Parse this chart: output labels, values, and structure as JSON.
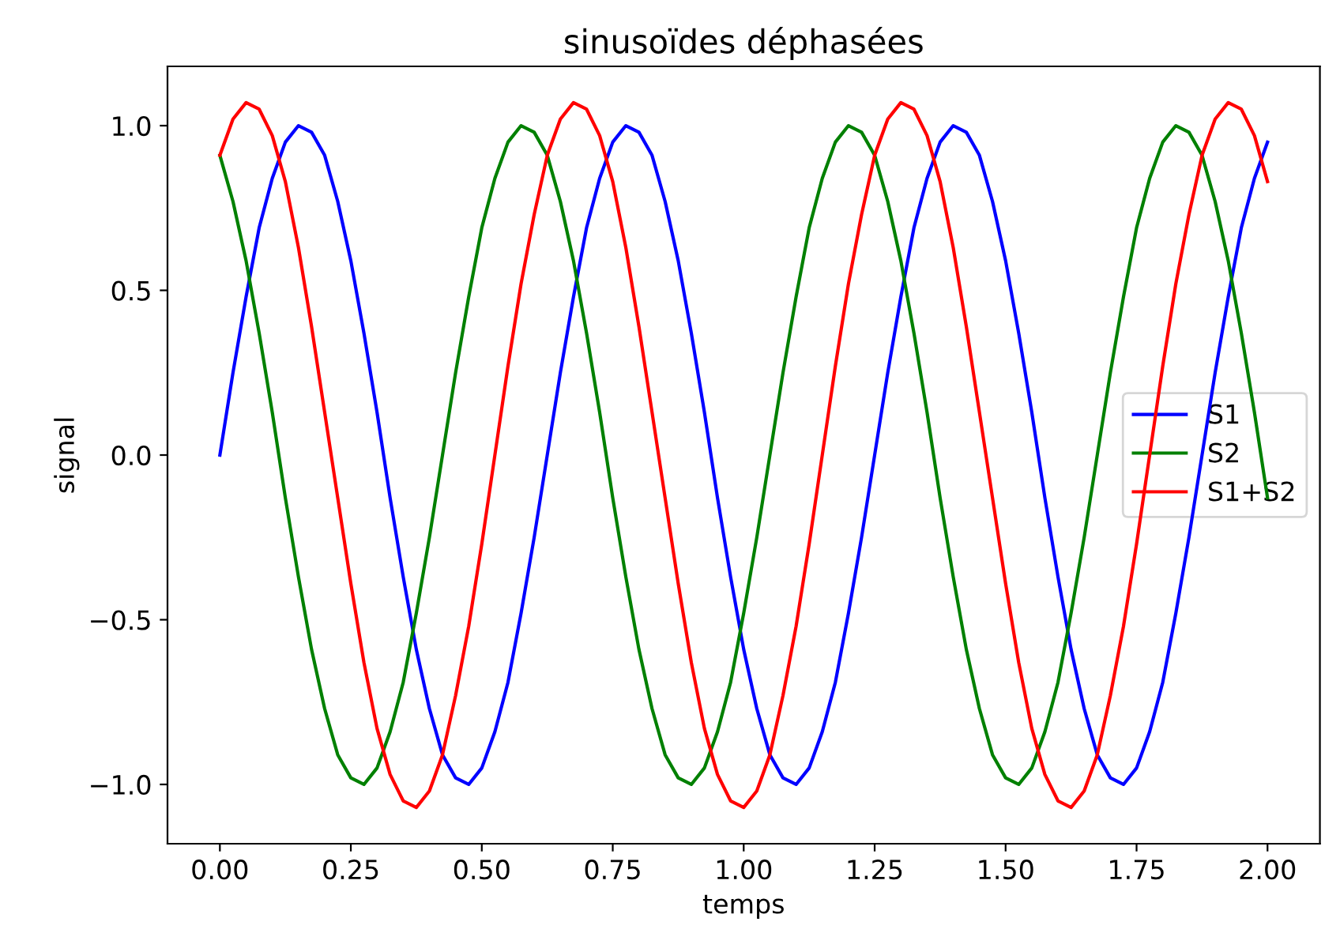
{
  "chart_data": {
    "type": "line",
    "title": "sinusoïdes déphasées",
    "xlabel": "temps",
    "ylabel": "signal",
    "x": [
      0,
      0.025,
      0.05,
      0.075,
      0.1,
      0.125,
      0.15,
      0.175,
      0.2,
      0.225,
      0.25,
      0.275,
      0.3,
      0.325,
      0.35,
      0.375,
      0.4,
      0.425,
      0.45,
      0.475,
      0.5,
      0.525,
      0.55,
      0.575,
      0.6,
      0.625,
      0.65,
      0.675,
      0.7,
      0.725,
      0.75,
      0.775,
      0.8,
      0.825,
      0.85,
      0.875,
      0.9,
      0.925,
      0.95,
      0.975,
      1.0,
      1.025,
      1.05,
      1.075,
      1.1,
      1.125,
      1.15,
      1.175,
      1.2,
      1.225,
      1.25,
      1.275,
      1.3,
      1.325,
      1.35,
      1.375,
      1.4,
      1.425,
      1.45,
      1.475,
      1.5,
      1.525,
      1.55,
      1.575,
      1.6,
      1.625,
      1.65,
      1.675,
      1.7,
      1.725,
      1.75,
      1.775,
      1.8,
      1.825,
      1.85,
      1.875,
      1.9,
      1.925,
      1.95,
      1.975,
      2.0
    ],
    "series": [
      {
        "name": "S1",
        "color": "#0000ff",
        "values": [
          0,
          0.25,
          0.48,
          0.69,
          0.84,
          0.95,
          1.0,
          0.98,
          0.91,
          0.77,
          0.59,
          0.37,
          0.13,
          -0.13,
          -0.37,
          -0.59,
          -0.77,
          -0.91,
          -0.98,
          -1.0,
          -0.95,
          -0.84,
          -0.69,
          -0.48,
          -0.25,
          0,
          0.25,
          0.48,
          0.69,
          0.84,
          0.95,
          1.0,
          0.98,
          0.91,
          0.77,
          0.59,
          0.37,
          0.13,
          -0.13,
          -0.37,
          -0.59,
          -0.77,
          -0.91,
          -0.98,
          -1.0,
          -0.95,
          -0.84,
          -0.69,
          -0.48,
          -0.25,
          0,
          0.25,
          0.48,
          0.69,
          0.84,
          0.95,
          1.0,
          0.98,
          0.91,
          0.77,
          0.59,
          0.37,
          0.13,
          -0.13,
          -0.37,
          -0.59,
          -0.77,
          -0.91,
          -0.98,
          -1.0,
          -0.95,
          -0.84,
          -0.69,
          -0.48,
          -0.25,
          0,
          0.25,
          0.48,
          0.69,
          0.84,
          0.95
        ]
      },
      {
        "name": "S2",
        "color": "#008000",
        "values": [
          0.91,
          0.77,
          0.59,
          0.37,
          0.13,
          -0.13,
          -0.37,
          -0.59,
          -0.77,
          -0.91,
          -0.98,
          -1.0,
          -0.95,
          -0.84,
          -0.69,
          -0.48,
          -0.25,
          0,
          0.25,
          0.48,
          0.69,
          0.84,
          0.95,
          1.0,
          0.98,
          0.91,
          0.77,
          0.59,
          0.37,
          0.13,
          -0.13,
          -0.37,
          -0.59,
          -0.77,
          -0.91,
          -0.98,
          -1.0,
          -0.95,
          -0.84,
          -0.69,
          -0.48,
          -0.25,
          0,
          0.25,
          0.48,
          0.69,
          0.84,
          0.95,
          1.0,
          0.98,
          0.91,
          0.77,
          0.59,
          0.37,
          0.13,
          -0.13,
          -0.37,
          -0.59,
          -0.77,
          -0.91,
          -0.98,
          -1.0,
          -0.95,
          -0.84,
          -0.69,
          -0.48,
          -0.25,
          0,
          0.25,
          0.48,
          0.69,
          0.84,
          0.95,
          1.0,
          0.98,
          0.91,
          0.77,
          0.59,
          0.37,
          0.13,
          -0.13
        ]
      },
      {
        "name": "S1+S2",
        "color": "#ff0000",
        "values": [
          0.91,
          1.02,
          1.07,
          1.05,
          0.97,
          0.83,
          0.63,
          0.39,
          0.13,
          -0.13,
          -0.39,
          -0.63,
          -0.83,
          -0.97,
          -1.05,
          -1.07,
          -1.02,
          -0.91,
          -0.73,
          -0.52,
          -0.27,
          0,
          0.27,
          0.52,
          0.73,
          0.91,
          1.02,
          1.07,
          1.05,
          0.97,
          0.83,
          0.63,
          0.39,
          0.13,
          -0.13,
          -0.39,
          -0.63,
          -0.83,
          -0.97,
          -1.05,
          -1.07,
          -1.02,
          -0.91,
          -0.73,
          -0.52,
          -0.27,
          0,
          0.27,
          0.52,
          0.73,
          0.91,
          1.02,
          1.07,
          1.05,
          0.97,
          0.83,
          0.63,
          0.39,
          0.13,
          -0.13,
          -0.39,
          -0.63,
          -0.83,
          -0.97,
          -1.05,
          -1.07,
          -1.02,
          -0.91,
          -0.73,
          -0.52,
          -0.27,
          0,
          0.27,
          0.52,
          0.73,
          0.91,
          1.02,
          1.07,
          1.05,
          0.97,
          0.83
        ]
      }
    ],
    "xlim": [
      -0.1,
      2.1
    ],
    "ylim": [
      -1.18,
      1.18
    ],
    "xticks": [
      {
        "value": 0,
        "label": "0.00"
      },
      {
        "value": 0.25,
        "label": "0.25"
      },
      {
        "value": 0.5,
        "label": "0.50"
      },
      {
        "value": 0.75,
        "label": "0.75"
      },
      {
        "value": 1.0,
        "label": "1.00"
      },
      {
        "value": 1.25,
        "label": "1.25"
      },
      {
        "value": 1.5,
        "label": "1.50"
      },
      {
        "value": 1.75,
        "label": "1.75"
      },
      {
        "value": 2.0,
        "label": "2.00"
      }
    ],
    "yticks": [
      {
        "value": -1.0,
        "label": "−1.0"
      },
      {
        "value": -0.5,
        "label": "−0.5"
      },
      {
        "value": 0.0,
        "label": "0.0"
      },
      {
        "value": 0.5,
        "label": "0.5"
      },
      {
        "value": 1.0,
        "label": "1.0"
      }
    ],
    "legend": "center right",
    "grid": false,
    "marker": "none",
    "line_style": "solid"
  }
}
